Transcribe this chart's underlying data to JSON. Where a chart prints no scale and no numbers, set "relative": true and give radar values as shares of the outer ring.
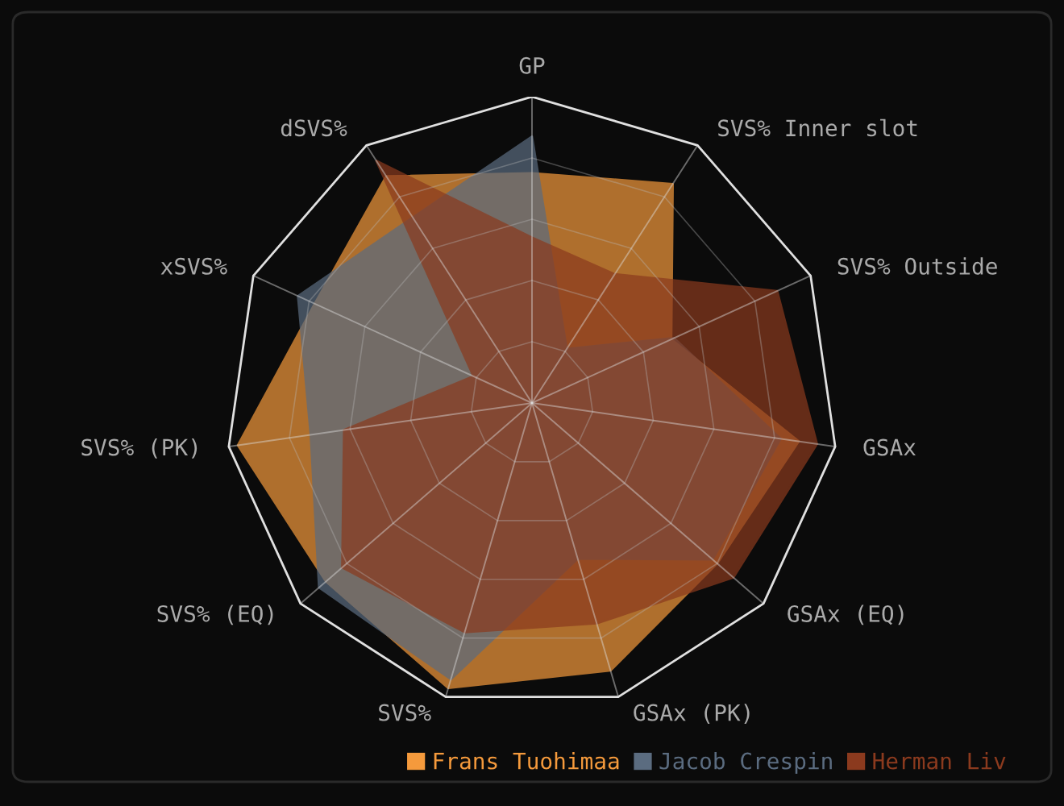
{
  "chart_data": {
    "type": "radar",
    "relative": true,
    "grid": true,
    "legend": "bottom right",
    "categories": [
      "GP",
      "SVS% Inner slot",
      "SVS% Outside",
      "GSAx",
      "GSAx (EQ)",
      "GSAx (PK)",
      "SVS%",
      "SVS% (EQ)",
      "SVS% (PK)",
      "xSVS%",
      "dSVS%"
    ],
    "series": [
      {
        "name": "Frans Tuohimaa",
        "color": "#f59a3c",
        "values": [
          0.75,
          0.85,
          0.5,
          0.88,
          0.8,
          0.91,
          0.97,
          0.89,
          0.97,
          0.78,
          0.88
        ]
      },
      {
        "name": "Jacob Crespin",
        "color": "#5b6c80",
        "values": [
          0.87,
          0.21,
          0.51,
          0.82,
          0.78,
          0.53,
          0.94,
          0.92,
          0.73,
          0.84,
          0.72
        ]
      },
      {
        "name": "Herman Liv",
        "color": "#8b3a1e",
        "values": [
          0.54,
          0.5,
          0.88,
          0.94,
          0.87,
          0.75,
          0.78,
          0.82,
          0.62,
          0.21,
          0.94
        ]
      }
    ]
  }
}
